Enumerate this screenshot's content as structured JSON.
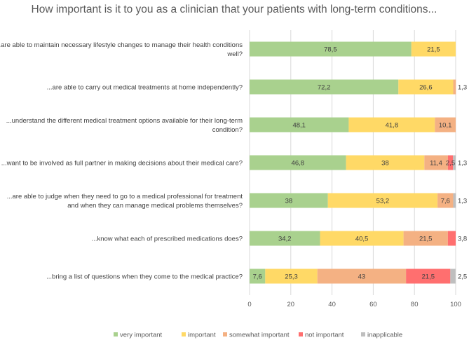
{
  "chart_data": {
    "type": "bar",
    "orientation": "horizontal",
    "stacked": true,
    "title": "How important is it to you as a clinician that your patients with long-term conditions...",
    "xlabel": "",
    "ylabel": "",
    "xlim": [
      0,
      100
    ],
    "xticks": [
      "0",
      "20",
      "40",
      "60",
      "80",
      "100"
    ],
    "grid": true,
    "legend_position": "bottom",
    "categories": [
      [
        "...are able to maintain necessary lifestyle changes to manage their health conditions",
        "well?"
      ],
      [
        "...are able to carry out medical treatments at home independently?"
      ],
      [
        "...understand the different medical treatment options available for their long-term",
        "condition?"
      ],
      [
        "...want to be involved as full partner in making decisions about their medical care?"
      ],
      [
        "...are able to judge when they need to go to a medical professional for treatment",
        "and when they can manage medical problems themselves?"
      ],
      [
        "...know what each of prescribed medications does?"
      ],
      [
        "...bring a list of questions when they come to the medical practice?"
      ]
    ],
    "series": [
      {
        "name": "very important",
        "color": "#a9d18e",
        "values": [
          78.5,
          72.2,
          48.1,
          46.8,
          38,
          34.2,
          7.6
        ],
        "labels": [
          "78,5",
          "72,2",
          "48,1",
          "46,8",
          "38",
          "34,2",
          "7,6"
        ]
      },
      {
        "name": "important",
        "color": "#ffd966",
        "values": [
          21.5,
          26.6,
          41.8,
          38,
          53.2,
          40.5,
          25.3
        ],
        "labels": [
          "21,5",
          "26,6",
          "41,8",
          "38",
          "53,2",
          "40,5",
          "25,3"
        ]
      },
      {
        "name": "somewhat important",
        "color": "#f4b183",
        "values": [
          0,
          1.3,
          10.1,
          11.4,
          7.6,
          21.5,
          43
        ],
        "labels": [
          "",
          "1,3",
          "10,1",
          "11,4",
          "7,6",
          "21,5",
          "43"
        ]
      },
      {
        "name": "not important",
        "color": "#ff6f6f",
        "values": [
          0,
          0,
          0,
          2.5,
          0,
          3.8,
          21.5
        ],
        "labels": [
          "",
          "",
          "",
          "2,5",
          "",
          "3,8",
          "21,5"
        ]
      },
      {
        "name": "inapplicable",
        "color": "#bfbfbf",
        "values": [
          0,
          0,
          0,
          1.3,
          1.3,
          0,
          2.5
        ],
        "labels": [
          "",
          "",
          "",
          "1,3",
          "1,3",
          "",
          "2,5"
        ]
      }
    ]
  }
}
